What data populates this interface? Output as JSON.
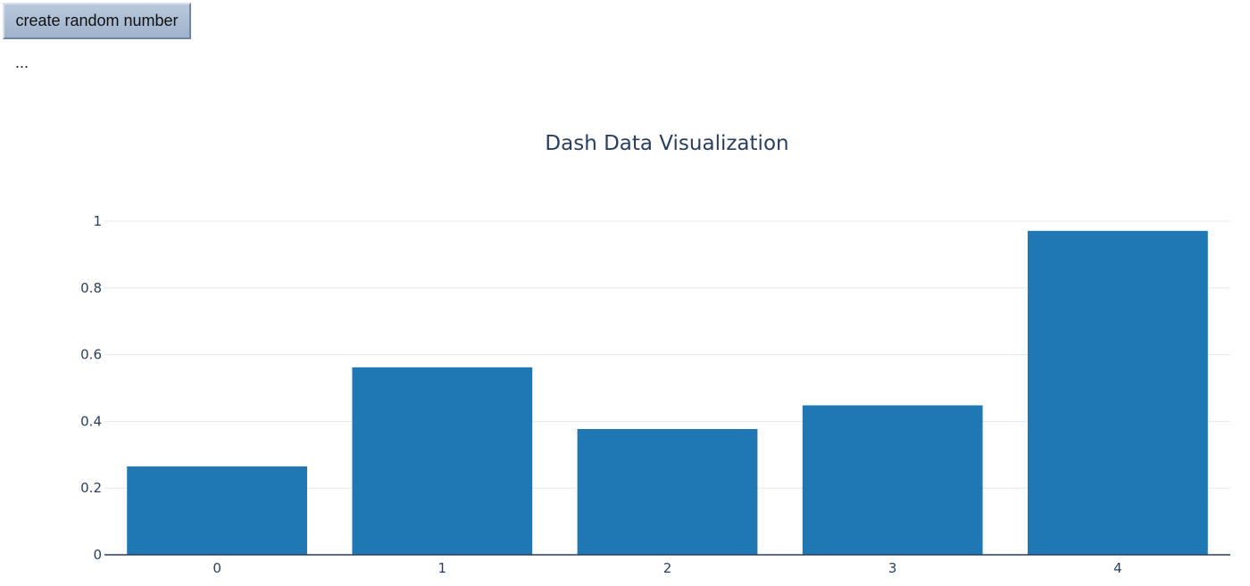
{
  "controls": {
    "button_label": "create random number",
    "status_text": "..."
  },
  "chart_data": {
    "type": "bar",
    "title": "Dash Data Visualization",
    "categories": [
      "0",
      "1",
      "2",
      "3",
      "4"
    ],
    "values": [
      0.265,
      0.562,
      0.377,
      0.448,
      0.971
    ],
    "ylim": [
      0,
      1.0
    ],
    "yticks": [
      0,
      0.2,
      0.4,
      0.6,
      0.8,
      1
    ],
    "ytick_labels": [
      "0",
      "0.2",
      "0.4",
      "0.6",
      "0.8",
      "1"
    ],
    "xlabel": "",
    "ylabel": "",
    "grid": true,
    "bar_color": "#1f77b4"
  }
}
